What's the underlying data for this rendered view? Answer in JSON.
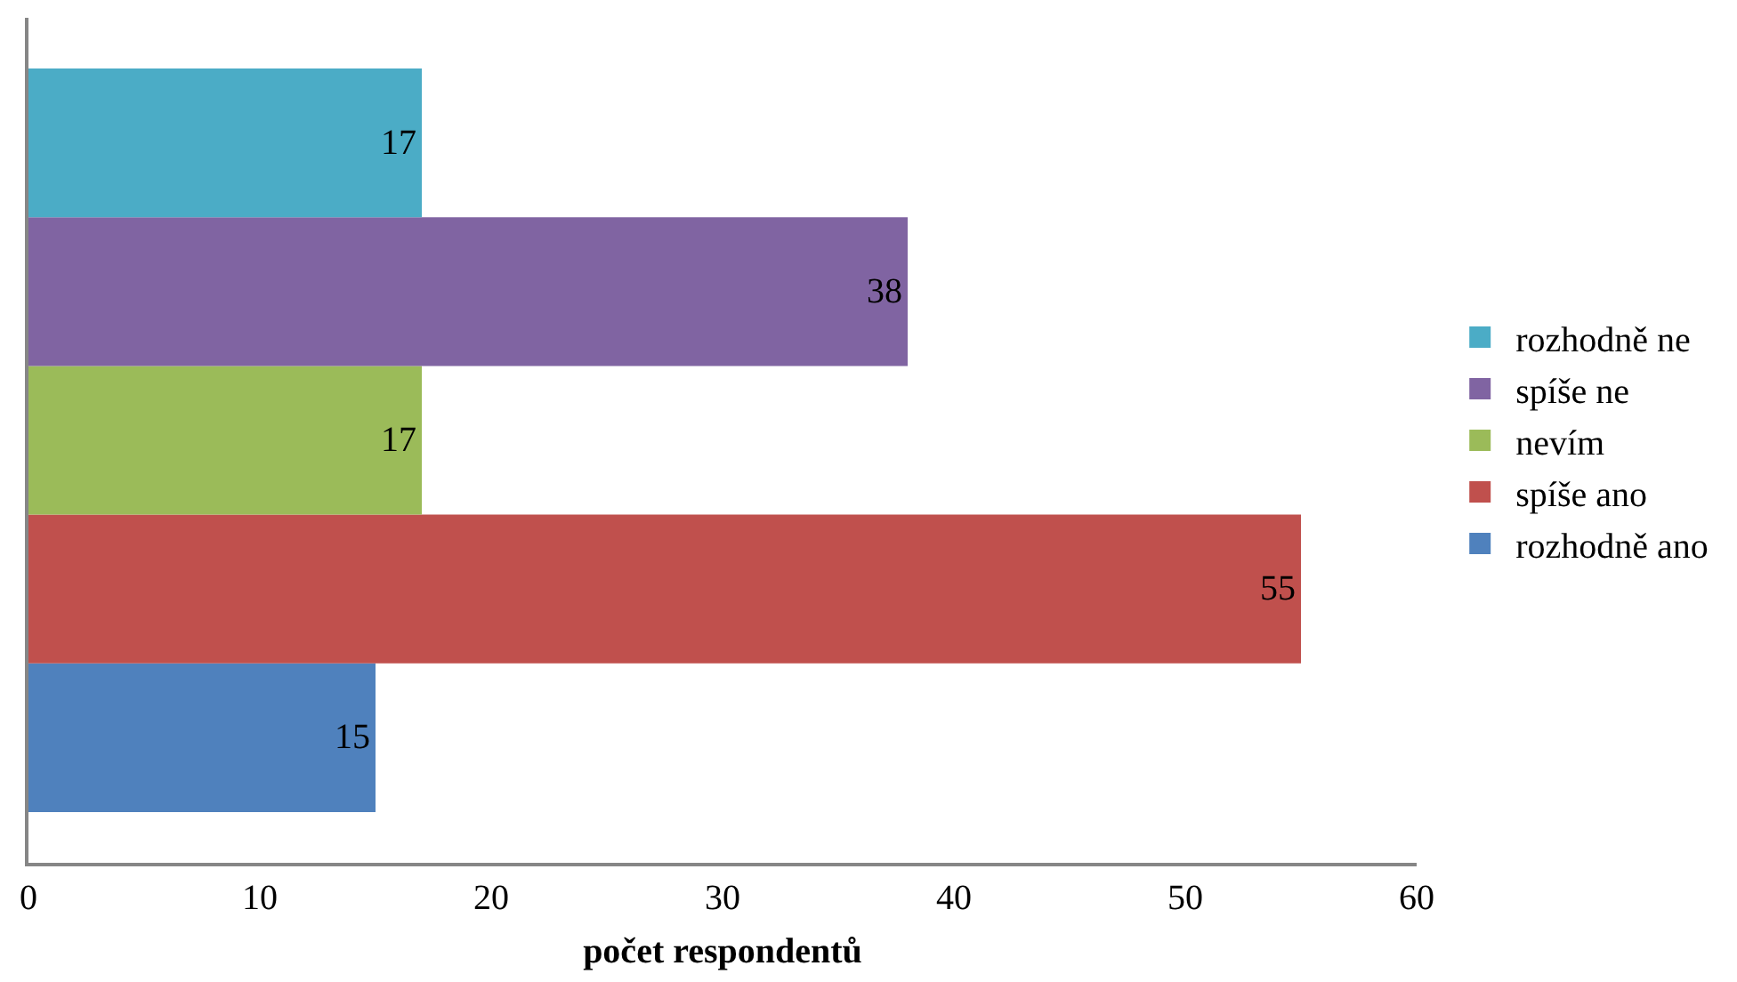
{
  "chart_data": {
    "type": "bar",
    "orientation": "horizontal",
    "xlabel": "počet respondentů",
    "categories": [
      null
    ],
    "series": [
      {
        "name": "rozhodně ano",
        "color": "#4f81bd",
        "values": [
          15
        ]
      },
      {
        "name": "spíše ano",
        "color": "#c0504d",
        "values": [
          55
        ]
      },
      {
        "name": "nevím",
        "color": "#9bbb59",
        "values": [
          17
        ]
      },
      {
        "name": "spíše ne",
        "color": "#8064a2",
        "values": [
          38
        ]
      },
      {
        "name": "rozhodně ne",
        "color": "#4bacc6",
        "values": [
          17
        ]
      }
    ],
    "xlim": [
      0,
      60
    ],
    "xticks": [
      0,
      10,
      20,
      30,
      40,
      50,
      60
    ],
    "data_labels": true,
    "legend": "right"
  }
}
